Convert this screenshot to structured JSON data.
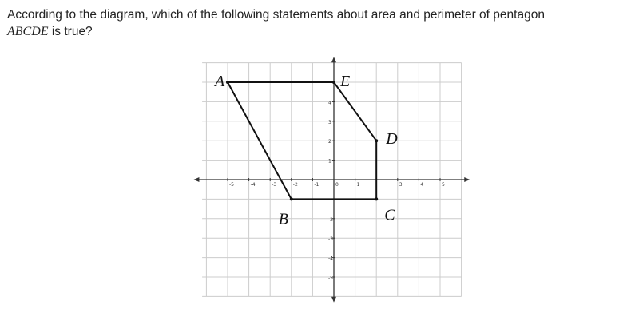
{
  "question": {
    "line1": "According to the diagram, which of the following statements about area and perimeter of pentagon",
    "line2_math": "ABCDE",
    "line2_text": " is true?"
  },
  "graph": {
    "xticks": [
      -5,
      -4,
      -3,
      -2,
      -1,
      0,
      1,
      3,
      4,
      5
    ],
    "yticks": [
      4,
      3,
      2,
      1,
      -2,
      -3,
      -4,
      -5
    ],
    "vertices": [
      {
        "label": "A",
        "x": -5,
        "y": 5
      },
      {
        "label": "B",
        "x": -2,
        "y": -1
      },
      {
        "label": "C",
        "x": 2,
        "y": -1
      },
      {
        "label": "D",
        "x": 2,
        "y": 2
      },
      {
        "label": "E",
        "x": 0,
        "y": 5
      }
    ]
  }
}
